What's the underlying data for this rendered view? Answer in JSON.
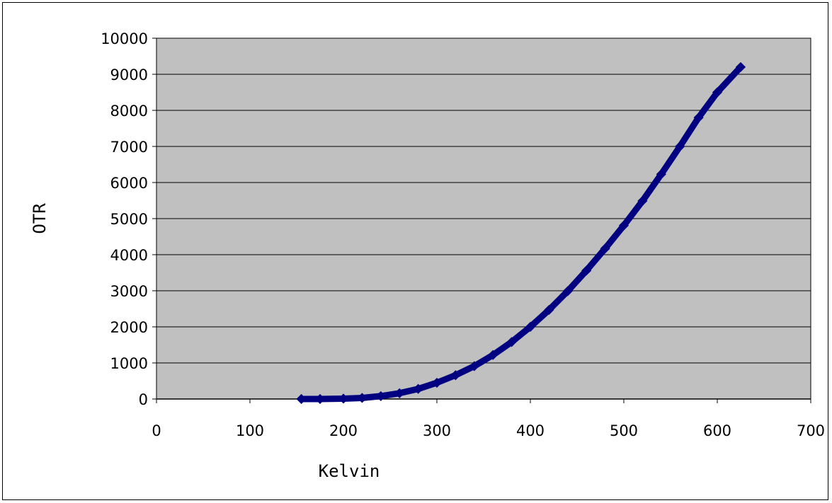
{
  "colors": {
    "plot_background": "#c0c0c0",
    "series_line": "#000080",
    "gridline": "#000000",
    "frame": "#000000"
  },
  "chart_data": {
    "type": "line",
    "title": "",
    "xlabel": "Kelvin",
    "ylabel": "OTR",
    "xlim": [
      0,
      700
    ],
    "ylim": [
      0,
      10000
    ],
    "x_ticks": [
      0,
      100,
      200,
      300,
      400,
      500,
      600,
      700
    ],
    "y_ticks": [
      0,
      1000,
      2000,
      3000,
      4000,
      5000,
      6000,
      7000,
      8000,
      9000,
      10000
    ],
    "x_tick_labels": [
      "0",
      "100",
      "200",
      "300",
      "400",
      "500",
      "600",
      "700"
    ],
    "y_tick_labels": [
      "0",
      "1000",
      "2000",
      "3000",
      "4000",
      "5000",
      "6000",
      "7000",
      "8000",
      "9000",
      "10000"
    ],
    "grid": {
      "horizontal": true,
      "vertical": false
    },
    "legend": "none",
    "series": [
      {
        "x": [
          155,
          175,
          200,
          220,
          240,
          260,
          280,
          300,
          320,
          340,
          360,
          380,
          400,
          420,
          440,
          460,
          480,
          500,
          520,
          540,
          560,
          580,
          600,
          625
        ],
        "y": [
          0,
          0,
          10,
          30,
          80,
          160,
          280,
          450,
          660,
          910,
          1220,
          1580,
          2000,
          2470,
          2990,
          3560,
          4170,
          4810,
          5490,
          6230,
          7000,
          7800,
          8500,
          9200
        ]
      }
    ]
  }
}
